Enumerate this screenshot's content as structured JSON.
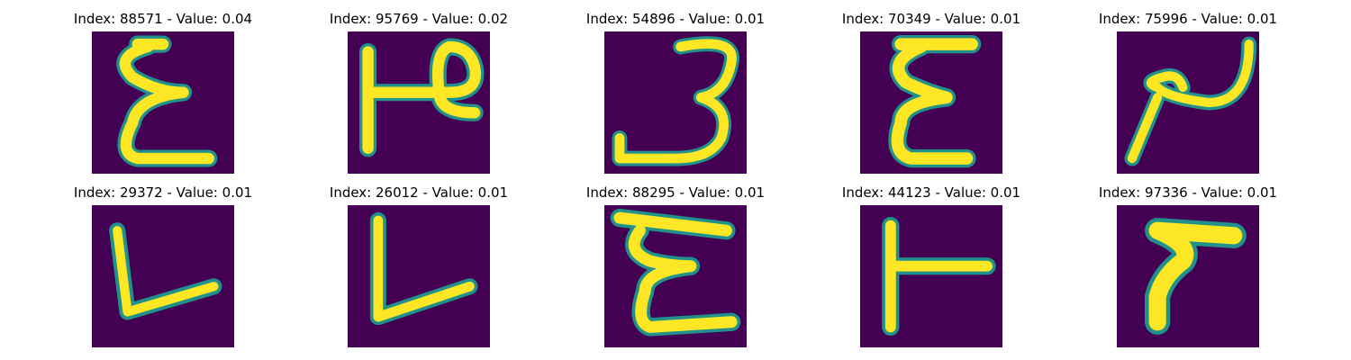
{
  "colors": {
    "background": "#440154",
    "edge": "#21918c",
    "mid": "#5ec962",
    "stroke": "#fde725"
  },
  "panels": [
    {
      "index": "88571",
      "value": "0.04",
      "title": "Index: 88571 - Value: 0.04"
    },
    {
      "index": "95769",
      "value": "0.02",
      "title": "Index: 95769 - Value: 0.02"
    },
    {
      "index": "54896",
      "value": "0.01",
      "title": "Index: 54896 - Value: 0.01"
    },
    {
      "index": "70349",
      "value": "0.01",
      "title": "Index: 70349 - Value: 0.01"
    },
    {
      "index": "75996",
      "value": "0.01",
      "title": "Index: 75996 - Value: 0.01"
    },
    {
      "index": "29372",
      "value": "0.01",
      "title": "Index: 29372 - Value: 0.01"
    },
    {
      "index": "26012",
      "value": "0.01",
      "title": "Index: 26012 - Value: 0.01"
    },
    {
      "index": "88295",
      "value": "0.01",
      "title": "Index: 88295 - Value: 0.01"
    },
    {
      "index": "44123",
      "value": "0.01",
      "title": "Index: 44123 - Value: 0.01"
    },
    {
      "index": "97336",
      "value": "0.01",
      "title": "Index: 97336 - Value: 0.01"
    }
  ]
}
